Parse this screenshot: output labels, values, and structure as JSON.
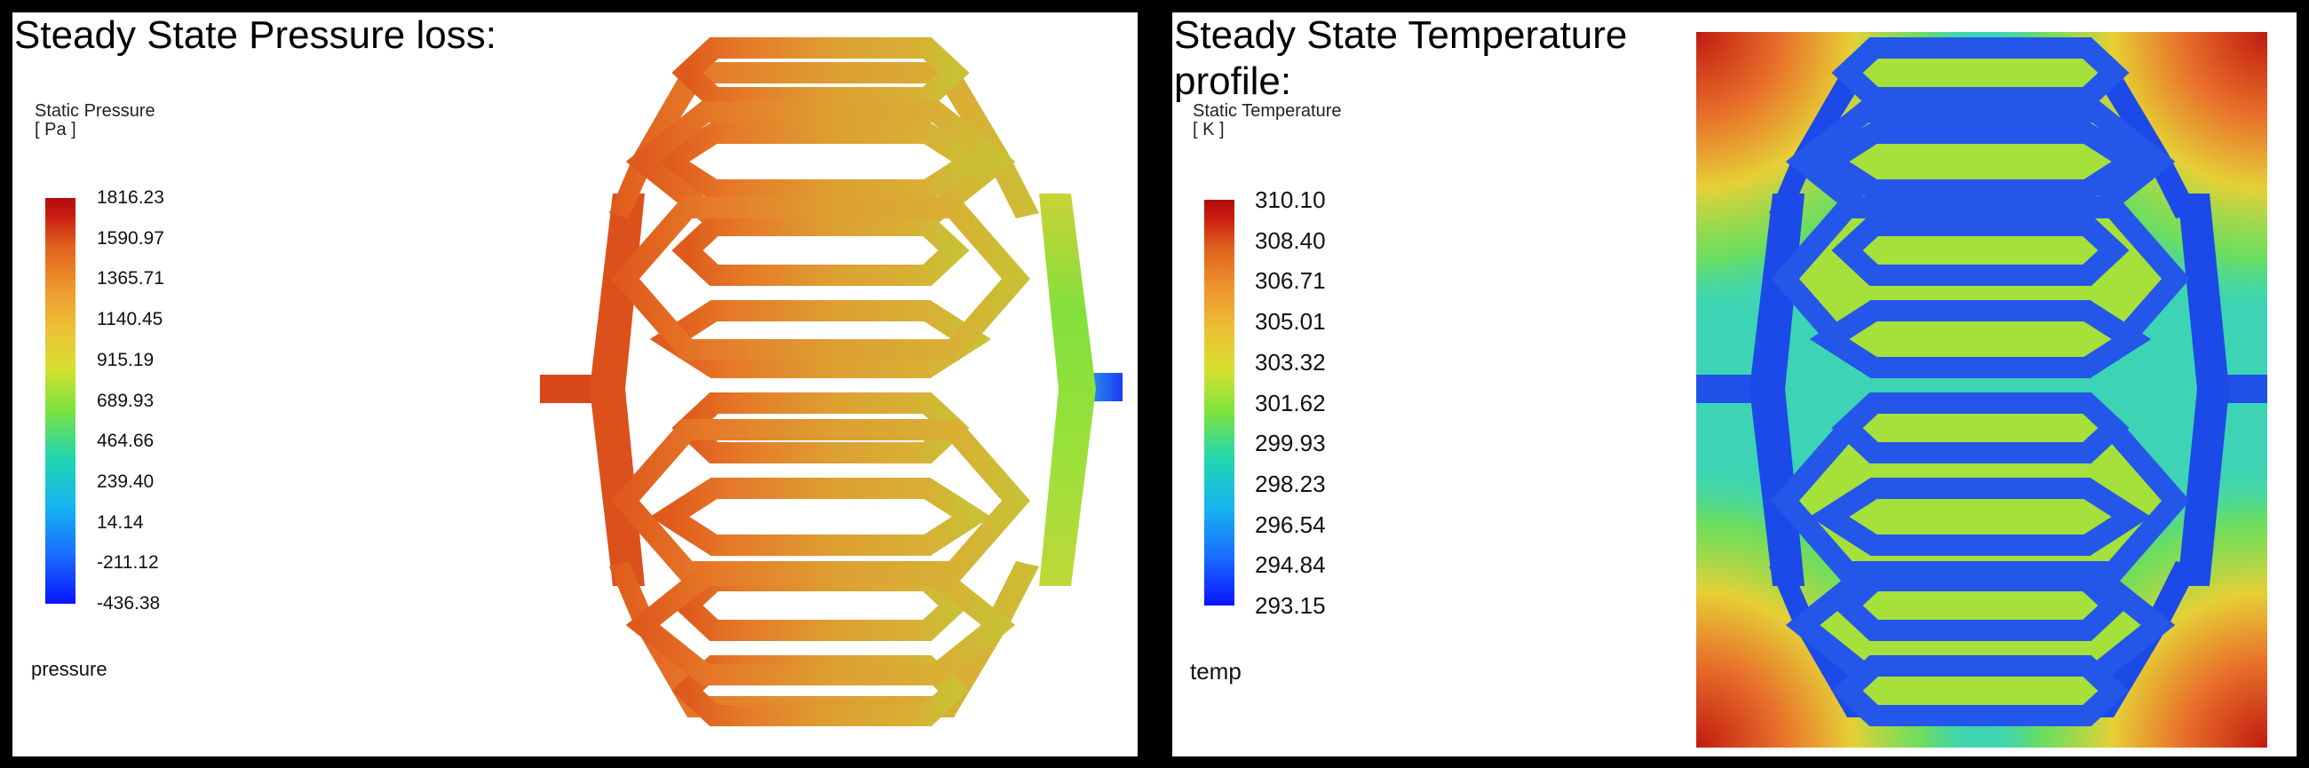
{
  "pressure_panel": {
    "title": "Steady State Pressure loss:",
    "legend_title": "Static Pressure\n[ Pa ]",
    "ticks": [
      "1816.23",
      "1590.97",
      "1365.71",
      "1140.45",
      "915.19",
      "689.93",
      "464.66",
      "239.40",
      "14.14",
      "-211.12",
      "-436.38"
    ],
    "variable": "pressure"
  },
  "temperature_panel": {
    "title": "Steady State Temperature profile:",
    "legend_title": "Static Temperature\n[ K ]",
    "ticks": [
      "310.10",
      "308.40",
      "306.71",
      "305.01",
      "303.32",
      "301.62",
      "299.93",
      "298.23",
      "296.54",
      "294.84",
      "293.15"
    ],
    "variable": "temp"
  },
  "colormap": {
    "low": "#0a14ff",
    "mid": "#7ee23c",
    "high": "#b30c0c",
    "pressure_channel": "#de9a30",
    "pressure_inlet": "#dc4a1c",
    "pressure_outlet": "#8ede3c",
    "temperature_channel": "#2050e8",
    "temperature_fluid": "#40d8b0"
  }
}
